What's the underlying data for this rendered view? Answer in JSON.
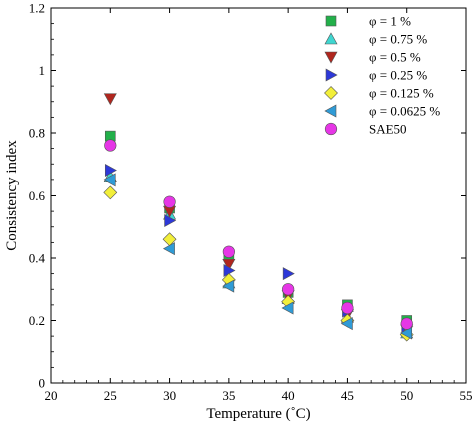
{
  "chart_data": {
    "type": "scatter",
    "xlabel": "Temperature (˚C)",
    "ylabel": "Consistency index",
    "xlim": [
      20,
      55
    ],
    "ylim": [
      0,
      1.2
    ],
    "xticks": [
      "20",
      "25",
      "30",
      "35",
      "40",
      "45",
      "50",
      "55"
    ],
    "yticks": [
      "0",
      "0.2",
      "0.4",
      "0.6",
      "0.8",
      "1",
      "1.2"
    ],
    "legend_position": "top-right",
    "series": [
      {
        "name": "φ = 1 %",
        "marker": "square",
        "color": "#22b04a",
        "points": [
          [
            25,
            0.79
          ],
          [
            30,
            0.56
          ],
          [
            35,
            0.41
          ],
          [
            40,
            0.29
          ],
          [
            45,
            0.25
          ],
          [
            50,
            0.2
          ]
        ]
      },
      {
        "name": "φ = 0.75 %",
        "marker": "triangle-up",
        "color": "#3fd6d0",
        "points": [
          [
            25,
            0.66
          ],
          [
            30,
            0.54
          ],
          [
            35,
            0.32
          ],
          [
            40,
            0.27
          ],
          [
            45,
            0.21
          ],
          [
            50,
            0.16
          ]
        ]
      },
      {
        "name": "φ = 0.5 %",
        "marker": "triangle-down",
        "color": "#b0261e",
        "points": [
          [
            25,
            0.91
          ],
          [
            30,
            0.55
          ],
          [
            35,
            0.38
          ],
          [
            40,
            0.28
          ],
          [
            45,
            0.22
          ],
          [
            50,
            0.17
          ]
        ]
      },
      {
        "name": "φ = 0.25 %",
        "marker": "triangle-right",
        "color": "#2d38d8",
        "points": [
          [
            25,
            0.68
          ],
          [
            30,
            0.52
          ],
          [
            35,
            0.36
          ],
          [
            40,
            0.35
          ],
          [
            45,
            0.23
          ],
          [
            50,
            0.18
          ]
        ]
      },
      {
        "name": "φ = 0.125 %",
        "marker": "diamond",
        "color": "#f2ef3a",
        "points": [
          [
            25,
            0.61
          ],
          [
            30,
            0.46
          ],
          [
            35,
            0.33
          ],
          [
            40,
            0.26
          ],
          [
            45,
            0.2
          ],
          [
            50,
            0.155
          ]
        ]
      },
      {
        "name": "φ = 0.0625 %",
        "marker": "triangle-left",
        "color": "#2f9bd6",
        "points": [
          [
            25,
            0.65
          ],
          [
            30,
            0.43
          ],
          [
            35,
            0.31
          ],
          [
            40,
            0.24
          ],
          [
            45,
            0.19
          ],
          [
            50,
            0.16
          ]
        ]
      },
      {
        "name": "SAE50",
        "marker": "circle",
        "color": "#e636e6",
        "points": [
          [
            25,
            0.76
          ],
          [
            30,
            0.58
          ],
          [
            35,
            0.42
          ],
          [
            40,
            0.3
          ],
          [
            45,
            0.24
          ],
          [
            50,
            0.19
          ]
        ]
      }
    ]
  }
}
